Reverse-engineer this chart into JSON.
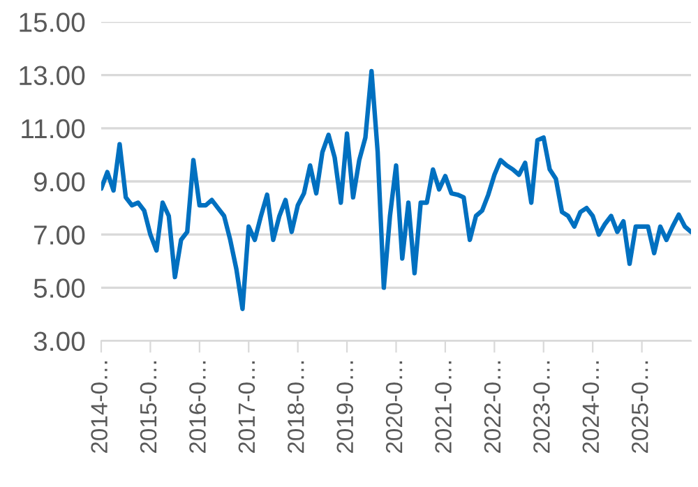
{
  "chart_data": {
    "type": "line",
    "categories": [
      "2014-0…",
      null,
      null,
      null,
      null,
      null,
      null,
      null,
      "2015-0…",
      null,
      null,
      null,
      null,
      null,
      null,
      null,
      "2016-0…",
      null,
      null,
      null,
      null,
      null,
      null,
      null,
      "2017-0…",
      null,
      null,
      null,
      null,
      null,
      null,
      null,
      "2018-0…",
      null,
      null,
      null,
      null,
      null,
      null,
      null,
      "2019-0…",
      null,
      null,
      null,
      null,
      null,
      null,
      null,
      "2020-0…",
      null,
      null,
      null,
      null,
      null,
      null,
      null,
      "2021-0…",
      null,
      null,
      null,
      null,
      null,
      null,
      null,
      "2022-0…",
      null,
      null,
      null,
      null,
      null,
      null,
      null,
      "2023-0…",
      null,
      null,
      null,
      null,
      null,
      null,
      null,
      "2024-0…",
      null,
      null,
      null,
      null,
      null,
      null,
      null,
      "2025-0…",
      null,
      null,
      null,
      null,
      null,
      null,
      null,
      null
    ],
    "series": [
      {
        "color": "#0070c0",
        "values": [
          8.73,
          9.35,
          8.66,
          10.4,
          8.4,
          8.1,
          8.2,
          7.9,
          7.0,
          6.4,
          8.2,
          7.7,
          5.4,
          6.8,
          7.1,
          9.8,
          8.1,
          8.1,
          8.3,
          8.0,
          7.7,
          6.8,
          5.7,
          4.2,
          7.3,
          6.8,
          7.7,
          8.5,
          6.8,
          7.7,
          8.3,
          7.1,
          8.1,
          8.55,
          9.6,
          8.55,
          10.1,
          10.75,
          9.9,
          8.2,
          10.8,
          8.4,
          9.8,
          10.65,
          13.15,
          10.1,
          5.0,
          7.7,
          9.6,
          6.1,
          8.2,
          5.55,
          8.2,
          8.2,
          9.45,
          8.7,
          9.2,
          8.55,
          8.5,
          8.4,
          6.8,
          7.7,
          7.9,
          8.5,
          9.25,
          9.8,
          9.6,
          9.45,
          9.25,
          9.7,
          8.2,
          10.55,
          10.65,
          9.45,
          9.1,
          7.85,
          7.7,
          7.3,
          7.85,
          8.0,
          7.7,
          7.0,
          7.4,
          7.7,
          7.1,
          7.5,
          5.9,
          7.3,
          7.3,
          7.3,
          6.3,
          7.3,
          6.8,
          7.3,
          7.75,
          7.3,
          7.1
        ]
      }
    ],
    "ylim": [
      3,
      15
    ],
    "yticks": [
      {
        "value": 3,
        "label": "3.00"
      },
      {
        "value": 5,
        "label": "5.00"
      },
      {
        "value": 7,
        "label": "7.00"
      },
      {
        "value": 9,
        "label": "9.00"
      },
      {
        "value": 11,
        "label": "11.00"
      },
      {
        "value": 13,
        "label": "13.00"
      },
      {
        "value": 15,
        "label": "15.00"
      }
    ],
    "grid": "y"
  }
}
